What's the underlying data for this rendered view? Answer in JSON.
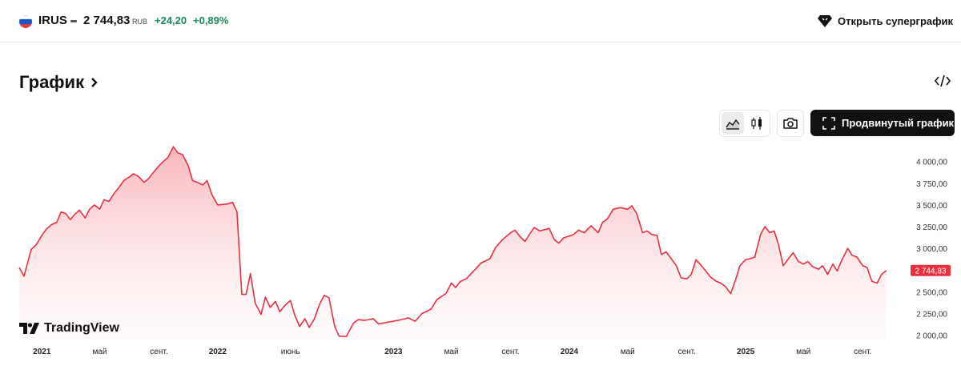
{
  "header": {
    "ticker": "IRUS",
    "price": "2 744,83",
    "currency": "RUB",
    "change": "+24,20",
    "change_pct": "+0,89%",
    "super_chart_label": "Открыть суперграфик",
    "colors": {
      "positive": "#1a8a5a"
    }
  },
  "section": {
    "title": "График"
  },
  "toolbar": {
    "advanced_label": "Продвинутый график",
    "icons": [
      "area-chart-icon",
      "candlestick-icon",
      "camera-icon",
      "fullscreen-icon",
      "code-icon"
    ]
  },
  "brand": {
    "label": "TradingView"
  },
  "chart_data": {
    "type": "area",
    "color": "#e8303f",
    "ylim": [
      1950,
      4200
    ],
    "y_ticks": [
      {
        "value": 4000,
        "label": "4 000,00"
      },
      {
        "value": 3750,
        "label": "3 750,00"
      },
      {
        "value": 3500,
        "label": "3 500,00"
      },
      {
        "value": 3250,
        "label": "3 250,00"
      },
      {
        "value": 3000,
        "label": "3 000,00"
      },
      {
        "value": 2500,
        "label": "2 500,00"
      },
      {
        "value": 2250,
        "label": "2 250,00"
      },
      {
        "value": 2000,
        "label": "2 000,00"
      }
    ],
    "last_value": 2744.83,
    "last_label": "2 744,83",
    "x_ticks": [
      {
        "date": "2021-01",
        "label": "2021",
        "bold": true
      },
      {
        "date": "2021-05",
        "label": "май"
      },
      {
        "date": "2021-09",
        "label": "сент."
      },
      {
        "date": "2022-01",
        "label": "2022",
        "bold": true
      },
      {
        "date": "2022-06",
        "label": "июнь"
      },
      {
        "date": "2023-01",
        "label": "2023",
        "bold": true
      },
      {
        "date": "2023-05",
        "label": "май"
      },
      {
        "date": "2023-09",
        "label": "сент."
      },
      {
        "date": "2024-01",
        "label": "2024",
        "bold": true
      },
      {
        "date": "2024-05",
        "label": "май"
      },
      {
        "date": "2024-09",
        "label": "сент."
      },
      {
        "date": "2025-01",
        "label": "2025",
        "bold": true
      },
      {
        "date": "2025-05",
        "label": "май"
      },
      {
        "date": "2025-09",
        "label": "сент."
      }
    ],
    "x_range": [
      "2020-11-15",
      "2025-12-01"
    ],
    "points": [
      [
        "2020-11-15",
        2780
      ],
      [
        "2020-11-25",
        2680
      ],
      [
        "2020-12-10",
        2990
      ],
      [
        "2020-12-20",
        3040
      ],
      [
        "2021-01-01",
        3150
      ],
      [
        "2021-01-10",
        3220
      ],
      [
        "2021-01-20",
        3270
      ],
      [
        "2021-02-01",
        3300
      ],
      [
        "2021-02-10",
        3420
      ],
      [
        "2021-02-20",
        3400
      ],
      [
        "2021-03-01",
        3330
      ],
      [
        "2021-03-10",
        3390
      ],
      [
        "2021-03-20",
        3440
      ],
      [
        "2021-04-01",
        3350
      ],
      [
        "2021-04-10",
        3450
      ],
      [
        "2021-04-20",
        3500
      ],
      [
        "2021-05-01",
        3450
      ],
      [
        "2021-05-10",
        3560
      ],
      [
        "2021-05-20",
        3540
      ],
      [
        "2021-06-01",
        3640
      ],
      [
        "2021-06-10",
        3700
      ],
      [
        "2021-06-20",
        3780
      ],
      [
        "2021-07-01",
        3820
      ],
      [
        "2021-07-10",
        3860
      ],
      [
        "2021-07-20",
        3830
      ],
      [
        "2021-08-01",
        3760
      ],
      [
        "2021-08-10",
        3800
      ],
      [
        "2021-08-20",
        3870
      ],
      [
        "2021-09-01",
        3950
      ],
      [
        "2021-09-10",
        4000
      ],
      [
        "2021-09-20",
        4050
      ],
      [
        "2021-10-01",
        4170
      ],
      [
        "2021-10-10",
        4100
      ],
      [
        "2021-10-20",
        4080
      ],
      [
        "2021-11-01",
        3950
      ],
      [
        "2021-11-10",
        3780
      ],
      [
        "2021-11-20",
        3760
      ],
      [
        "2021-12-01",
        3730
      ],
      [
        "2021-12-10",
        3780
      ],
      [
        "2021-12-20",
        3620
      ],
      [
        "2022-01-01",
        3500
      ],
      [
        "2022-01-20",
        3510
      ],
      [
        "2022-02-01",
        3530
      ],
      [
        "2022-02-10",
        3420
      ],
      [
        "2022-02-20",
        2470
      ],
      [
        "2022-03-01",
        2470
      ],
      [
        "2022-03-10",
        2710
      ],
      [
        "2022-03-20",
        2370
      ],
      [
        "2022-04-01",
        2240
      ],
      [
        "2022-04-10",
        2440
      ],
      [
        "2022-04-20",
        2320
      ],
      [
        "2022-05-01",
        2390
      ],
      [
        "2022-05-10",
        2270
      ],
      [
        "2022-05-20",
        2340
      ],
      [
        "2022-06-01",
        2400
      ],
      [
        "2022-06-10",
        2230
      ],
      [
        "2022-06-20",
        2100
      ],
      [
        "2022-07-01",
        2190
      ],
      [
        "2022-07-10",
        2090
      ],
      [
        "2022-07-20",
        2180
      ],
      [
        "2022-08-01",
        2360
      ],
      [
        "2022-08-10",
        2460
      ],
      [
        "2022-08-20",
        2430
      ],
      [
        "2022-09-01",
        2100
      ],
      [
        "2022-09-10",
        1990
      ],
      [
        "2022-09-25",
        1985
      ],
      [
        "2022-10-10",
        2140
      ],
      [
        "2022-10-20",
        2180
      ],
      [
        "2022-11-01",
        2170
      ],
      [
        "2022-11-20",
        2190
      ],
      [
        "2022-12-01",
        2130
      ],
      [
        "2022-12-20",
        2150
      ],
      [
        "2023-01-10",
        2170
      ],
      [
        "2023-02-01",
        2200
      ],
      [
        "2023-02-15",
        2160
      ],
      [
        "2023-03-01",
        2250
      ],
      [
        "2023-03-20",
        2300
      ],
      [
        "2023-04-01",
        2410
      ],
      [
        "2023-04-20",
        2480
      ],
      [
        "2023-05-01",
        2600
      ],
      [
        "2023-05-10",
        2550
      ],
      [
        "2023-05-20",
        2620
      ],
      [
        "2023-06-01",
        2650
      ],
      [
        "2023-06-20",
        2760
      ],
      [
        "2023-07-01",
        2830
      ],
      [
        "2023-07-20",
        2880
      ],
      [
        "2023-08-01",
        3010
      ],
      [
        "2023-08-15",
        3100
      ],
      [
        "2023-09-01",
        3180
      ],
      [
        "2023-09-10",
        3210
      ],
      [
        "2023-09-20",
        3140
      ],
      [
        "2023-10-01",
        3080
      ],
      [
        "2023-10-10",
        3160
      ],
      [
        "2023-10-20",
        3240
      ],
      [
        "2023-11-01",
        3200
      ],
      [
        "2023-11-20",
        3230
      ],
      [
        "2023-12-01",
        3100
      ],
      [
        "2023-12-10",
        3060
      ],
      [
        "2023-12-20",
        3120
      ],
      [
        "2024-01-10",
        3160
      ],
      [
        "2024-01-20",
        3210
      ],
      [
        "2024-02-01",
        3180
      ],
      [
        "2024-02-15",
        3260
      ],
      [
        "2024-03-01",
        3180
      ],
      [
        "2024-03-10",
        3300
      ],
      [
        "2024-03-20",
        3340
      ],
      [
        "2024-04-01",
        3450
      ],
      [
        "2024-04-15",
        3470
      ],
      [
        "2024-05-01",
        3450
      ],
      [
        "2024-05-10",
        3490
      ],
      [
        "2024-05-20",
        3400
      ],
      [
        "2024-06-01",
        3180
      ],
      [
        "2024-06-10",
        3200
      ],
      [
        "2024-06-20",
        3160
      ],
      [
        "2024-07-01",
        3150
      ],
      [
        "2024-07-10",
        2930
      ],
      [
        "2024-07-20",
        2960
      ],
      [
        "2024-08-01",
        2870
      ],
      [
        "2024-08-10",
        2800
      ],
      [
        "2024-08-20",
        2660
      ],
      [
        "2024-09-01",
        2650
      ],
      [
        "2024-09-10",
        2700
      ],
      [
        "2024-09-20",
        2870
      ],
      [
        "2024-10-01",
        2800
      ],
      [
        "2024-10-10",
        2740
      ],
      [
        "2024-10-20",
        2670
      ],
      [
        "2024-11-01",
        2620
      ],
      [
        "2024-11-10",
        2600
      ],
      [
        "2024-11-20",
        2560
      ],
      [
        "2024-12-01",
        2480
      ],
      [
        "2024-12-10",
        2620
      ],
      [
        "2024-12-20",
        2800
      ],
      [
        "2025-01-01",
        2870
      ],
      [
        "2025-01-10",
        2880
      ],
      [
        "2025-01-20",
        2900
      ],
      [
        "2025-02-01",
        3160
      ],
      [
        "2025-02-10",
        3250
      ],
      [
        "2025-02-20",
        3180
      ],
      [
        "2025-03-01",
        3200
      ],
      [
        "2025-03-10",
        3050
      ],
      [
        "2025-03-20",
        2800
      ],
      [
        "2025-04-01",
        2890
      ],
      [
        "2025-04-10",
        2950
      ],
      [
        "2025-04-20",
        2850
      ],
      [
        "2025-05-01",
        2820
      ],
      [
        "2025-05-10",
        2850
      ],
      [
        "2025-05-20",
        2790
      ],
      [
        "2025-06-01",
        2760
      ],
      [
        "2025-06-10",
        2800
      ],
      [
        "2025-06-20",
        2700
      ],
      [
        "2025-07-01",
        2820
      ],
      [
        "2025-07-10",
        2740
      ],
      [
        "2025-07-20",
        2870
      ],
      [
        "2025-08-01",
        3000
      ],
      [
        "2025-08-10",
        2920
      ],
      [
        "2025-08-20",
        2900
      ],
      [
        "2025-09-01",
        2800
      ],
      [
        "2025-09-10",
        2780
      ],
      [
        "2025-09-20",
        2620
      ],
      [
        "2025-10-01",
        2600
      ],
      [
        "2025-10-10",
        2700
      ],
      [
        "2025-10-20",
        2744.83
      ]
    ]
  }
}
